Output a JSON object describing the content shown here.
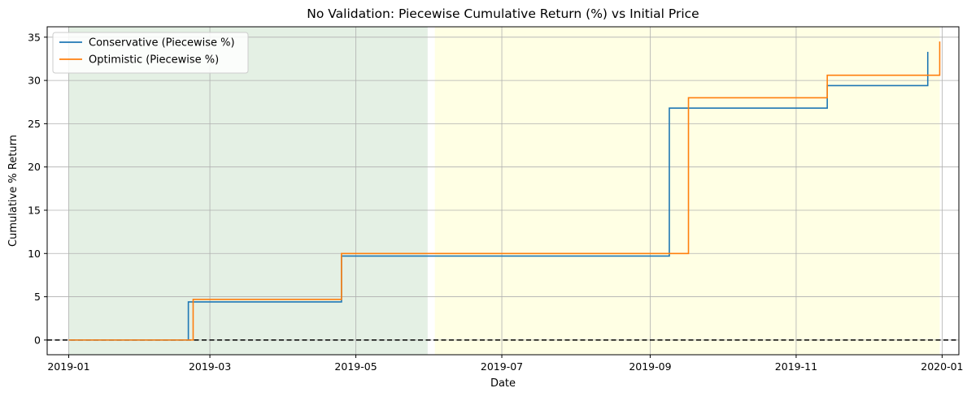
{
  "chart_data": {
    "type": "line",
    "title": "No Validation: Piecewise Cumulative Return (%) vs Initial Price",
    "xlabel": "Date",
    "ylabel": "Cumulative % Return",
    "x_axis_type": "date",
    "xlim": [
      "2018-12-23",
      "2020-01-08"
    ],
    "ylim": [
      -1.7,
      36.2
    ],
    "x_ticks": [
      "2019-01-01",
      "2019-03-01",
      "2019-05-01",
      "2019-07-01",
      "2019-09-01",
      "2019-11-01",
      "2020-01-01"
    ],
    "x_tick_labels": [
      "2019-01",
      "2019-03",
      "2019-05",
      "2019-07",
      "2019-09",
      "2019-11",
      "2020-01"
    ],
    "y_ticks": [
      0,
      5,
      10,
      15,
      20,
      25,
      30,
      35
    ],
    "y_tick_labels": [
      "0",
      "5",
      "10",
      "15",
      "20",
      "25",
      "30",
      "35"
    ],
    "grid": true,
    "legend_position": "top-left",
    "reference_line": {
      "y": 0,
      "style": "dashed",
      "color": "#000000"
    },
    "shaded_regions": [
      {
        "start": "2019-01-01",
        "end": "2019-05-31",
        "color": "#e4f0e4"
      },
      {
        "start": "2019-06-03",
        "end": "2019-12-31",
        "color": "#ffffe4"
      }
    ],
    "series": [
      {
        "name": "Conservative (Piecewise %)",
        "color": "#1f77b4",
        "step": "post",
        "points": [
          {
            "x": "2019-01-01",
            "y": 0
          },
          {
            "x": "2019-02-20",
            "y": 4.4
          },
          {
            "x": "2019-04-25",
            "y": 9.7
          },
          {
            "x": "2019-09-09",
            "y": 26.8
          },
          {
            "x": "2019-11-14",
            "y": 29.4
          },
          {
            "x": "2019-12-26",
            "y": 33.3
          }
        ]
      },
      {
        "name": "Optimistic (Piecewise %)",
        "color": "#ff7f0e",
        "step": "post",
        "points": [
          {
            "x": "2019-01-01",
            "y": 0
          },
          {
            "x": "2019-02-22",
            "y": 4.7
          },
          {
            "x": "2019-04-25",
            "y": 10.0
          },
          {
            "x": "2019-09-17",
            "y": 28.0
          },
          {
            "x": "2019-11-14",
            "y": 30.6
          },
          {
            "x": "2019-12-31",
            "y": 34.5
          }
        ]
      }
    ]
  }
}
